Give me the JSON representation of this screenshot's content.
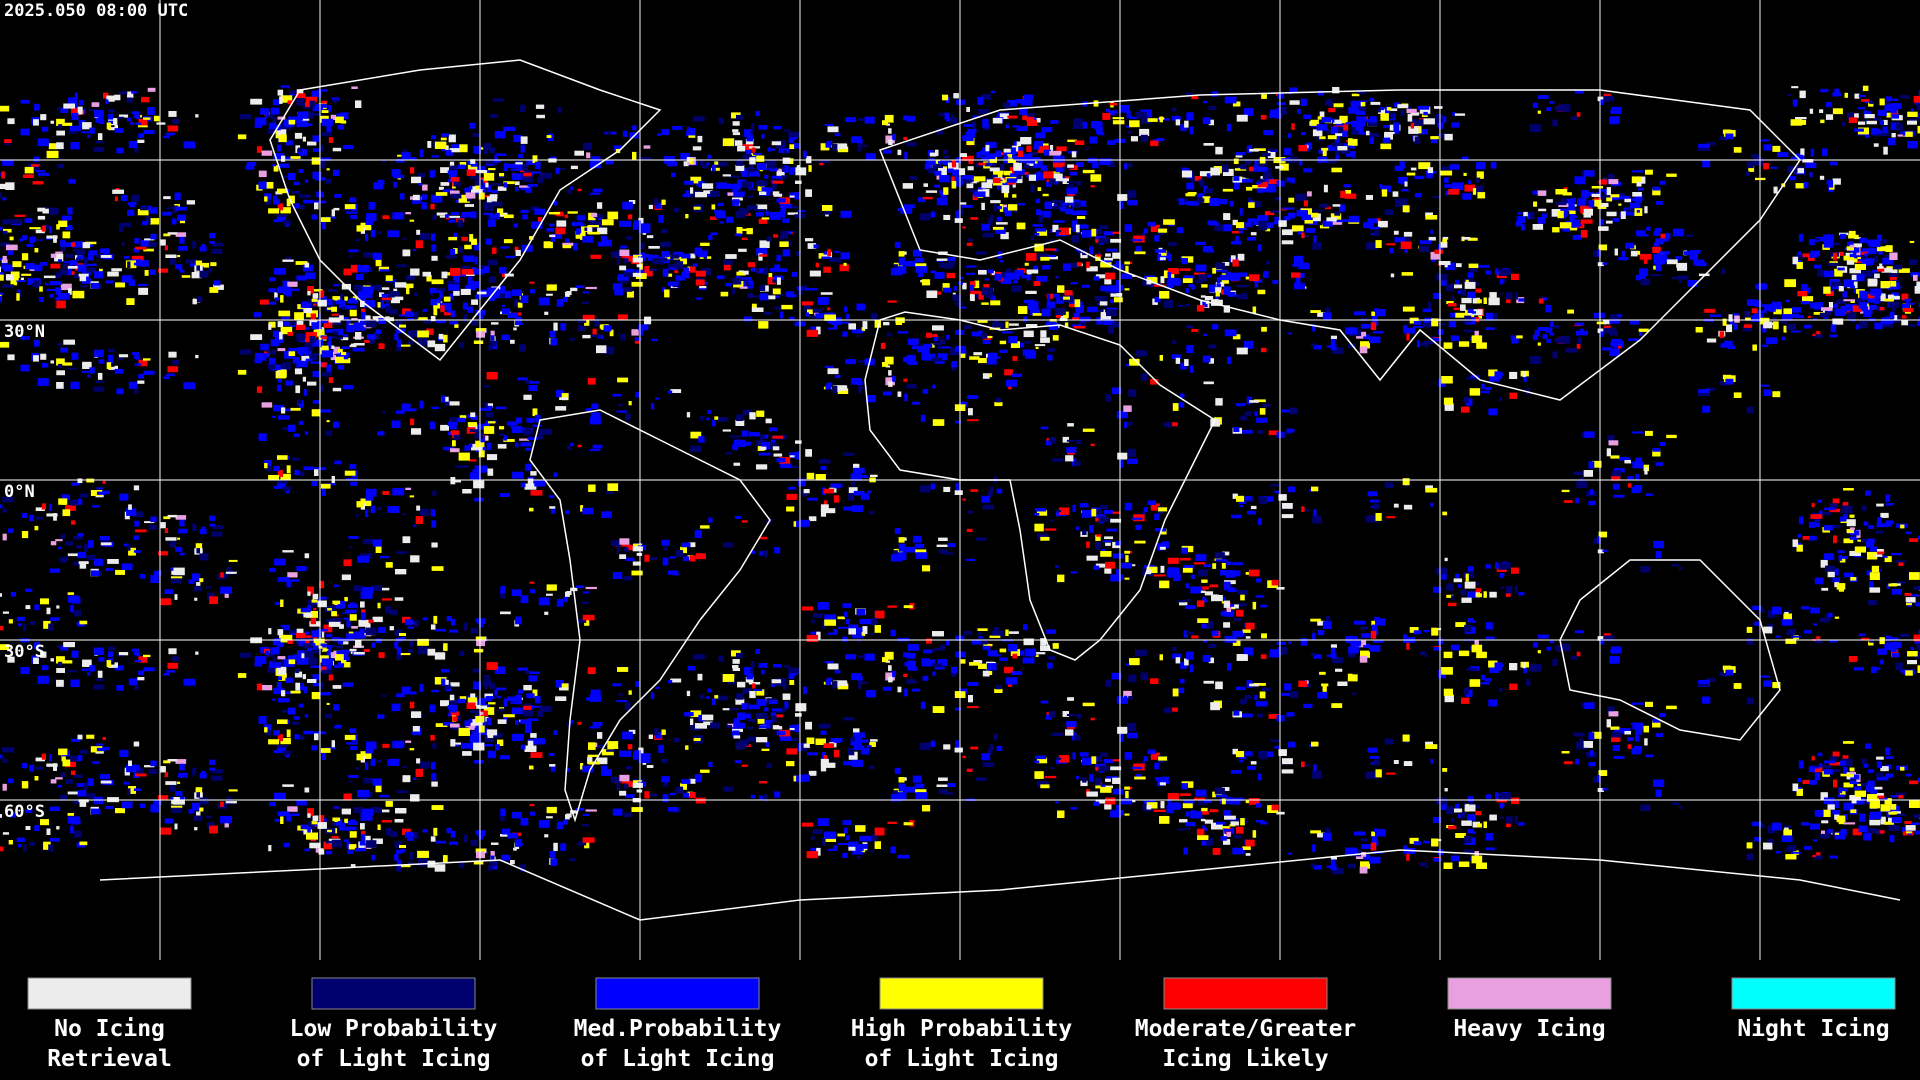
{
  "header": {
    "timestamp": "2025.050 08:00 UTC"
  },
  "map": {
    "lat_labels": [
      "30°N",
      "0°N",
      "30°S",
      "60°S"
    ]
  },
  "legend": [
    {
      "color": "#ececec",
      "lines": [
        "No Icing",
        "Retrieval"
      ]
    },
    {
      "color": "#00006e",
      "lines": [
        "Low Probability",
        "of Light Icing"
      ]
    },
    {
      "color": "#0000ff",
      "lines": [
        "Med.Probability",
        "of Light Icing"
      ]
    },
    {
      "color": "#ffff00",
      "lines": [
        "High Probability",
        "of Light Icing"
      ]
    },
    {
      "color": "#ff0000",
      "lines": [
        "Moderate/Greater",
        "Icing Likely"
      ]
    },
    {
      "color": "#e8a0e0",
      "lines": [
        "Heavy Icing"
      ]
    },
    {
      "color": "#00ffff",
      "lines": [
        "Night Icing"
      ]
    }
  ]
}
